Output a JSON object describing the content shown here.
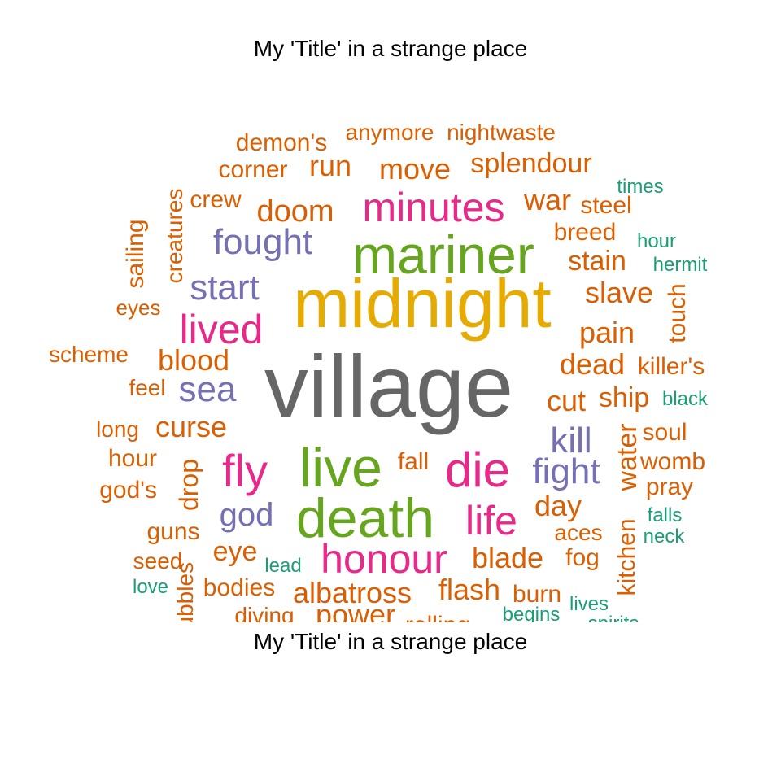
{
  "title_top": "My 'Title' in a strange place",
  "title_bottom": "My 'Title' in a strange place",
  "chart_data": {
    "type": "wordcloud",
    "title": "My 'Title' in a strange place",
    "colors": {
      "gray": "#666666",
      "gold": "#E6AB02",
      "green": "#66A61E",
      "pink": "#E7298A",
      "purple": "#7570B3",
      "orange": "#D95F02",
      "teal": "#1B9E77"
    },
    "words": [
      {
        "text": "village",
        "color": "gray"
      },
      {
        "text": "midnight",
        "color": "gold"
      },
      {
        "text": "mariner",
        "color": "green"
      },
      {
        "text": "live",
        "color": "green"
      },
      {
        "text": "death",
        "color": "green"
      },
      {
        "text": "minutes",
        "color": "pink"
      },
      {
        "text": "lived",
        "color": "pink"
      },
      {
        "text": "fly",
        "color": "pink"
      },
      {
        "text": "die",
        "color": "pink"
      },
      {
        "text": "life",
        "color": "pink"
      },
      {
        "text": "honour",
        "color": "pink"
      },
      {
        "text": "fought",
        "color": "purple"
      },
      {
        "text": "start",
        "color": "purple"
      },
      {
        "text": "sea",
        "color": "purple"
      },
      {
        "text": "kill",
        "color": "purple"
      },
      {
        "text": "fight",
        "color": "purple"
      },
      {
        "text": "god",
        "color": "purple"
      },
      {
        "text": "demon's",
        "color": "orange"
      },
      {
        "text": "anymore",
        "color": "orange"
      },
      {
        "text": "nightwaste",
        "color": "orange"
      },
      {
        "text": "corner",
        "color": "orange"
      },
      {
        "text": "run",
        "color": "orange"
      },
      {
        "text": "move",
        "color": "orange"
      },
      {
        "text": "splendour",
        "color": "orange"
      },
      {
        "text": "creatures",
        "color": "orange"
      },
      {
        "text": "crew",
        "color": "orange"
      },
      {
        "text": "doom",
        "color": "orange"
      },
      {
        "text": "war",
        "color": "orange"
      },
      {
        "text": "steel",
        "color": "orange"
      },
      {
        "text": "breed",
        "color": "orange"
      },
      {
        "text": "sailing",
        "color": "orange"
      },
      {
        "text": "stain",
        "color": "orange"
      },
      {
        "text": "slave",
        "color": "orange"
      },
      {
        "text": "eyes",
        "color": "orange"
      },
      {
        "text": "touch",
        "color": "orange"
      },
      {
        "text": "pain",
        "color": "orange"
      },
      {
        "text": "blood",
        "color": "orange"
      },
      {
        "text": "scheme",
        "color": "orange"
      },
      {
        "text": "dead",
        "color": "orange"
      },
      {
        "text": "killer's",
        "color": "orange"
      },
      {
        "text": "feel",
        "color": "orange"
      },
      {
        "text": "cut",
        "color": "orange"
      },
      {
        "text": "ship",
        "color": "orange"
      },
      {
        "text": "curse",
        "color": "orange"
      },
      {
        "text": "long",
        "color": "orange"
      },
      {
        "text": "water",
        "color": "orange"
      },
      {
        "text": "soul",
        "color": "orange"
      },
      {
        "text": "hour",
        "color": "orange"
      },
      {
        "text": "drop",
        "color": "orange"
      },
      {
        "text": "fall",
        "color": "orange"
      },
      {
        "text": "womb",
        "color": "orange"
      },
      {
        "text": "god's",
        "color": "orange"
      },
      {
        "text": "pray",
        "color": "orange"
      },
      {
        "text": "day",
        "color": "orange"
      },
      {
        "text": "guns",
        "color": "orange"
      },
      {
        "text": "kitchen",
        "color": "orange"
      },
      {
        "text": "aces",
        "color": "orange"
      },
      {
        "text": "eye",
        "color": "orange"
      },
      {
        "text": "seed",
        "color": "orange"
      },
      {
        "text": "blade",
        "color": "orange"
      },
      {
        "text": "fog",
        "color": "orange"
      },
      {
        "text": "bubbles",
        "color": "orange"
      },
      {
        "text": "bodies",
        "color": "orange"
      },
      {
        "text": "albatross",
        "color": "orange"
      },
      {
        "text": "flash",
        "color": "orange"
      },
      {
        "text": "burn",
        "color": "orange"
      },
      {
        "text": "diving",
        "color": "orange"
      },
      {
        "text": "power",
        "color": "orange"
      },
      {
        "text": "rolling",
        "color": "orange"
      },
      {
        "text": "times",
        "color": "teal"
      },
      {
        "text": "hour",
        "color": "teal"
      },
      {
        "text": "hermit",
        "color": "teal"
      },
      {
        "text": "black",
        "color": "teal"
      },
      {
        "text": "falls",
        "color": "teal"
      },
      {
        "text": "neck",
        "color": "teal"
      },
      {
        "text": "lead",
        "color": "teal"
      },
      {
        "text": "love",
        "color": "teal"
      },
      {
        "text": "lives",
        "color": "teal"
      },
      {
        "text": "begins",
        "color": "teal"
      },
      {
        "text": "spirits",
        "color": "teal"
      }
    ]
  }
}
